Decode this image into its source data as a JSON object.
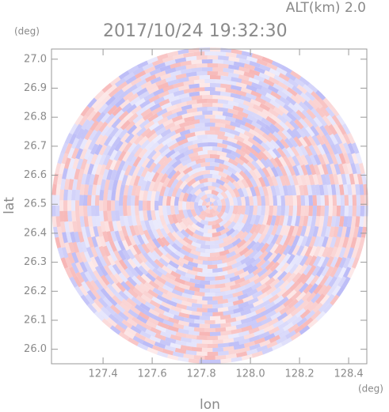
{
  "chart_data": {
    "type": "radar-ppi",
    "title": "2017/10/24 19:32:30",
    "annotation": "ALT(km) 2.0",
    "y_unit": "(deg)",
    "x_unit": "(deg)",
    "ylabel": "lat",
    "xlabel": "lon",
    "xlim": [
      127.19,
      128.474
    ],
    "ylim": [
      25.95,
      27.035
    ],
    "xticks": [
      127.4,
      127.6,
      127.8,
      {
        "value": 128,
        "label": "128.0"
      },
      128.2,
      128.4
    ],
    "yticks": [
      {
        "value": 26,
        "label": "26.0"
      },
      26.1,
      26.2,
      26.3,
      26.4,
      26.5,
      26.6,
      26.7,
      26.8,
      26.9,
      {
        "value": 27,
        "label": "27.0"
      }
    ]
  }
}
